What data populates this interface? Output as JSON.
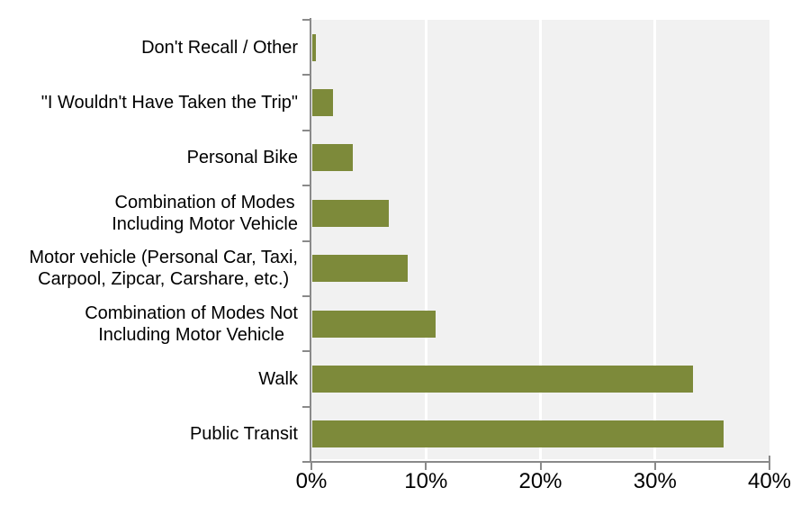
{
  "chart_data": {
    "type": "bar",
    "orientation": "horizontal",
    "title": "",
    "xlabel": "",
    "ylabel": "",
    "xlim": [
      0,
      40
    ],
    "grid": "vertical-white-lines-on-gray-panel",
    "legend": "none",
    "x_tick_labels": [
      "0%",
      "10%",
      "20%",
      "30%",
      "40%"
    ],
    "x_tick_values": [
      0,
      10,
      20,
      30,
      40
    ],
    "categories": [
      "Don't Recall / Other",
      "\"I Wouldn't Have Taken the Trip\"",
      "Personal Bike",
      "Combination of Modes Including Motor Vehicle",
      "Motor vehicle (Personal Car, Taxi, Carpool, Zipcar, Carshare, etc.)",
      "Combination of Modes Not Including Motor Vehicle",
      "Walk",
      "Public Transit"
    ],
    "category_display_lines": [
      [
        "Don't Recall / Other"
      ],
      [
        "\"I Wouldn't Have Taken the Trip\""
      ],
      [
        "Personal Bike"
      ],
      [
        "Combination of Modes",
        "Including Motor Vehicle"
      ],
      [
        "Motor vehicle (Personal Car, Taxi,",
        "Carpool, Zipcar, Carshare, etc.)"
      ],
      [
        "Combination of Modes Not",
        "Including Motor Vehicle"
      ],
      [
        "Walk"
      ],
      [
        "Public Transit"
      ]
    ],
    "values": [
      0.3,
      1.8,
      3.5,
      6.7,
      8.3,
      10.8,
      33.2,
      35.9
    ],
    "colors": {
      "bar": "#7D8A3A",
      "plot_background": "#F1F1F1",
      "gridline": "#FFFFFF",
      "axis": "#8A8A8A",
      "text": "#000000",
      "page_background": "#FFFFFF"
    }
  }
}
